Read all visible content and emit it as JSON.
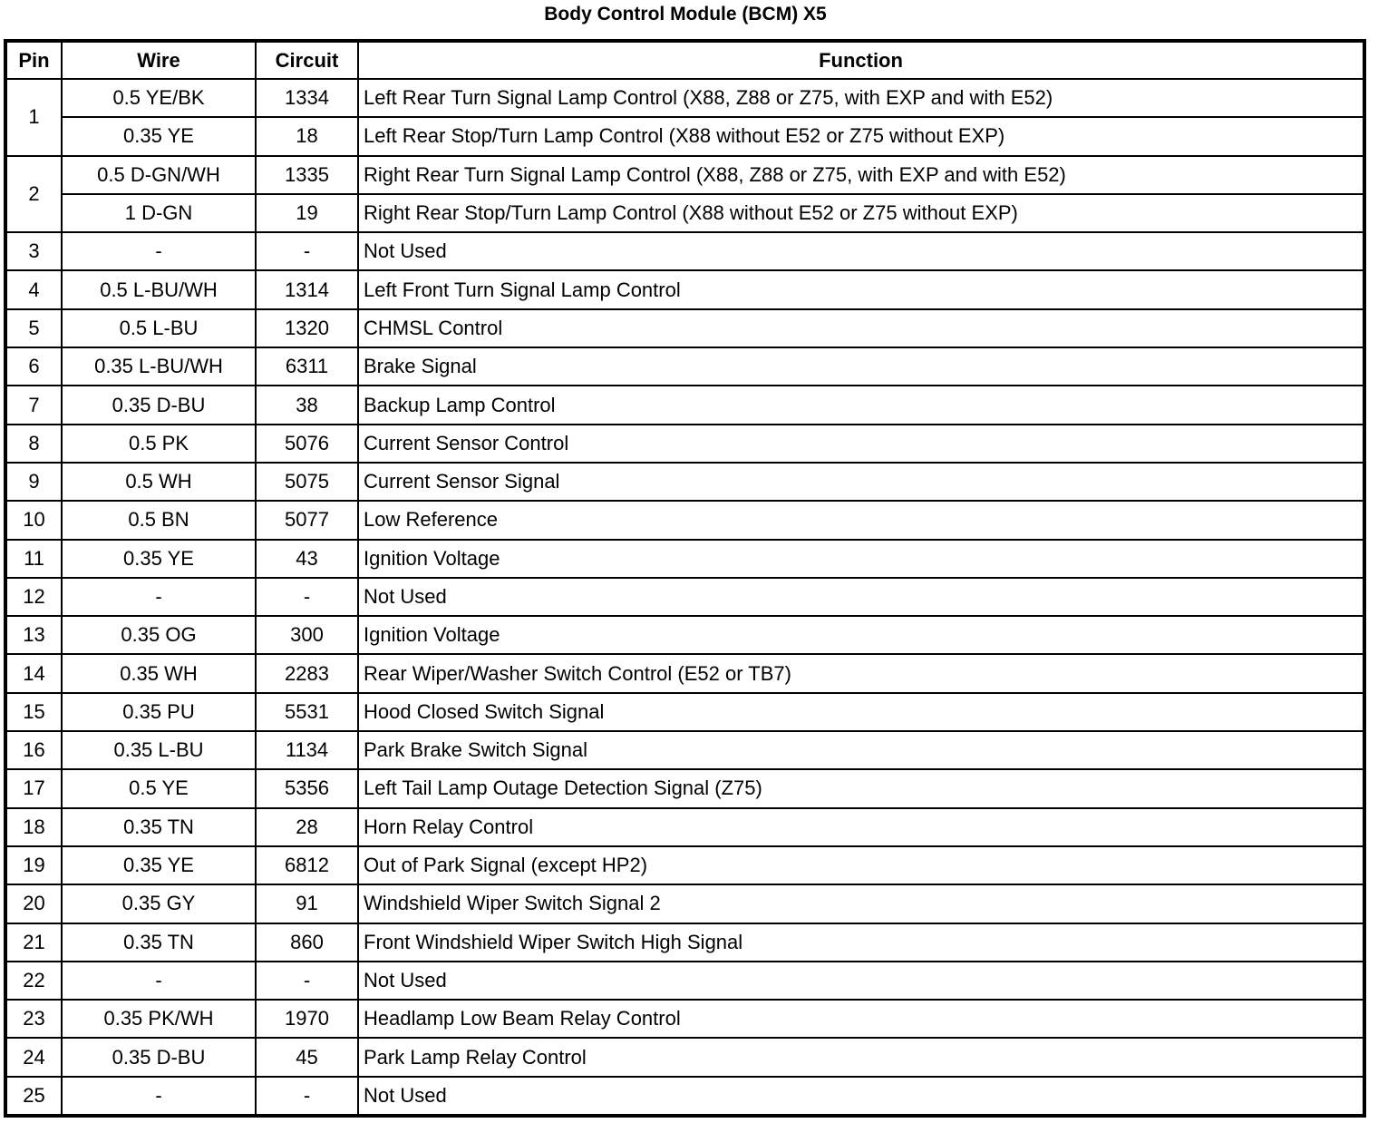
{
  "title": "Body Control Module (BCM) X5",
  "headers": {
    "pin": "Pin",
    "wire": "Wire",
    "circuit": "Circuit",
    "function": "Function"
  },
  "rows": [
    {
      "pin": "1",
      "entries": [
        {
          "wire": "0.5 YE/BK",
          "circuit": "1334",
          "function": "Left Rear Turn Signal Lamp Control (X88, Z88 or Z75, with EXP and with E52)"
        },
        {
          "wire": "0.35 YE",
          "circuit": "18",
          "function": "Left Rear Stop/Turn Lamp Control (X88 without E52 or Z75 without EXP)"
        }
      ]
    },
    {
      "pin": "2",
      "entries": [
        {
          "wire": "0.5 D-GN/WH",
          "circuit": "1335",
          "function": "Right Rear Turn Signal Lamp Control (X88, Z88 or Z75, with EXP and with E52)"
        },
        {
          "wire": "1 D-GN",
          "circuit": "19",
          "function": "Right Rear Stop/Turn Lamp Control (X88 without E52 or Z75 without EXP)"
        }
      ]
    },
    {
      "pin": "3",
      "entries": [
        {
          "wire": "-",
          "circuit": "-",
          "function": "Not Used"
        }
      ]
    },
    {
      "pin": "4",
      "entries": [
        {
          "wire": "0.5 L-BU/WH",
          "circuit": "1314",
          "function": "Left Front Turn Signal Lamp Control"
        }
      ]
    },
    {
      "pin": "5",
      "entries": [
        {
          "wire": "0.5 L-BU",
          "circuit": "1320",
          "function": "CHMSL Control"
        }
      ]
    },
    {
      "pin": "6",
      "entries": [
        {
          "wire": "0.35 L-BU/WH",
          "circuit": "6311",
          "function": "Brake Signal"
        }
      ]
    },
    {
      "pin": "7",
      "entries": [
        {
          "wire": "0.35 D-BU",
          "circuit": "38",
          "function": "Backup Lamp Control"
        }
      ]
    },
    {
      "pin": "8",
      "entries": [
        {
          "wire": "0.5 PK",
          "circuit": "5076",
          "function": "Current Sensor Control"
        }
      ]
    },
    {
      "pin": "9",
      "entries": [
        {
          "wire": "0.5 WH",
          "circuit": "5075",
          "function": "Current Sensor Signal"
        }
      ]
    },
    {
      "pin": "10",
      "entries": [
        {
          "wire": "0.5 BN",
          "circuit": "5077",
          "function": "Low Reference"
        }
      ]
    },
    {
      "pin": "11",
      "entries": [
        {
          "wire": "0.35 YE",
          "circuit": "43",
          "function": "Ignition Voltage"
        }
      ]
    },
    {
      "pin": "12",
      "entries": [
        {
          "wire": "-",
          "circuit": "-",
          "function": "Not Used"
        }
      ]
    },
    {
      "pin": "13",
      "entries": [
        {
          "wire": "0.35 OG",
          "circuit": "300",
          "function": "Ignition Voltage"
        }
      ]
    },
    {
      "pin": "14",
      "entries": [
        {
          "wire": "0.35 WH",
          "circuit": "2283",
          "function": "Rear Wiper/Washer Switch Control (E52 or TB7)"
        }
      ]
    },
    {
      "pin": "15",
      "entries": [
        {
          "wire": "0.35 PU",
          "circuit": "5531",
          "function": "Hood Closed Switch Signal"
        }
      ]
    },
    {
      "pin": "16",
      "entries": [
        {
          "wire": "0.35 L-BU",
          "circuit": "1134",
          "function": "Park Brake Switch Signal"
        }
      ]
    },
    {
      "pin": "17",
      "entries": [
        {
          "wire": "0.5 YE",
          "circuit": "5356",
          "function": "Left Tail Lamp Outage Detection Signal (Z75)"
        }
      ]
    },
    {
      "pin": "18",
      "entries": [
        {
          "wire": "0.35 TN",
          "circuit": "28",
          "function": "Horn Relay Control"
        }
      ]
    },
    {
      "pin": "19",
      "entries": [
        {
          "wire": "0.35 YE",
          "circuit": "6812",
          "function": "Out of Park Signal (except HP2)"
        }
      ]
    },
    {
      "pin": "20",
      "entries": [
        {
          "wire": "0.35 GY",
          "circuit": "91",
          "function": "Windshield Wiper Switch Signal 2"
        }
      ]
    },
    {
      "pin": "21",
      "entries": [
        {
          "wire": "0.35 TN",
          "circuit": "860",
          "function": "Front Windshield Wiper Switch High Signal"
        }
      ]
    },
    {
      "pin": "22",
      "entries": [
        {
          "wire": "-",
          "circuit": "-",
          "function": "Not Used"
        }
      ]
    },
    {
      "pin": "23",
      "entries": [
        {
          "wire": "0.35 PK/WH",
          "circuit": "1970",
          "function": "Headlamp Low Beam Relay Control"
        }
      ]
    },
    {
      "pin": "24",
      "entries": [
        {
          "wire": "0.35 D-BU",
          "circuit": "45",
          "function": "Park Lamp Relay Control"
        }
      ]
    },
    {
      "pin": "25",
      "entries": [
        {
          "wire": "-",
          "circuit": "-",
          "function": "Not Used"
        }
      ]
    }
  ]
}
